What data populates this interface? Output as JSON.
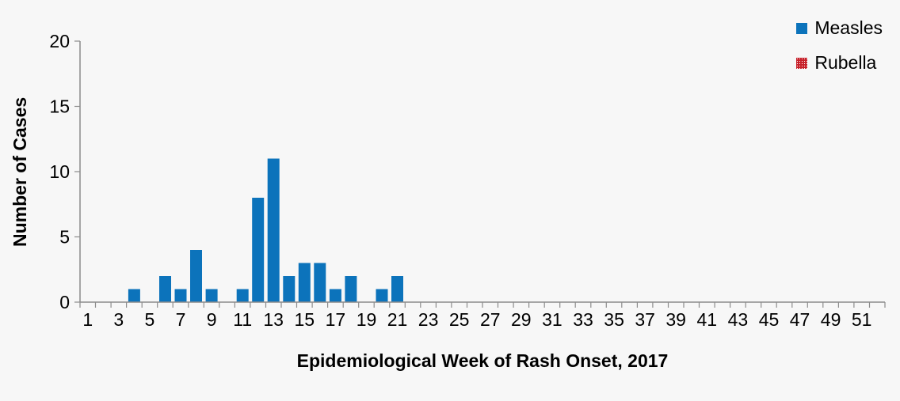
{
  "chart_data": {
    "type": "bar",
    "title": "",
    "xlabel": "Epidemiological Week of Rash Onset, 2017",
    "ylabel": "Number of Cases",
    "categories": [
      1,
      2,
      3,
      4,
      5,
      6,
      7,
      8,
      9,
      10,
      11,
      12,
      13,
      14,
      15,
      16,
      17,
      18,
      19,
      20,
      21,
      22,
      23,
      24,
      25,
      26,
      27,
      28,
      29,
      30,
      31,
      32,
      33,
      34,
      35,
      36,
      37,
      38,
      39,
      40,
      41,
      42,
      43,
      44,
      45,
      46,
      47,
      48,
      49,
      50,
      51,
      52
    ],
    "x_tick_labels_shown": [
      1,
      3,
      5,
      7,
      9,
      11,
      13,
      15,
      17,
      19,
      21,
      23,
      25,
      27,
      29,
      31,
      33,
      35,
      37,
      39,
      41,
      43,
      45,
      47,
      49,
      51
    ],
    "ylim": [
      0,
      20
    ],
    "yticks": [
      0,
      5,
      10,
      15,
      20
    ],
    "grid": false,
    "legend_position": "top-right",
    "series": [
      {
        "name": "Measles",
        "color": "#0C73BB",
        "pattern": "solid",
        "values": [
          0,
          0,
          0,
          1,
          0,
          2,
          1,
          4,
          1,
          0,
          1,
          8,
          11,
          2,
          3,
          3,
          1,
          2,
          0,
          1,
          2,
          0,
          0,
          0,
          0,
          0,
          0,
          0,
          0,
          0,
          0,
          0,
          0,
          0,
          0,
          0,
          0,
          0,
          0,
          0,
          0,
          0,
          0,
          0,
          0,
          0,
          0,
          0,
          0,
          0,
          0,
          0
        ]
      },
      {
        "name": "Rubella",
        "color": "#C7212A",
        "pattern": "dotted",
        "values": [
          0,
          0,
          0,
          0,
          0,
          0,
          0,
          0,
          0,
          0,
          0,
          0,
          0,
          0,
          0,
          0,
          0,
          0,
          0,
          0,
          0,
          0,
          0,
          0,
          0,
          0,
          0,
          0,
          0,
          0,
          0,
          0,
          0,
          0,
          0,
          0,
          0,
          0,
          0,
          0,
          0,
          0,
          0,
          0,
          0,
          0,
          0,
          0,
          0,
          0,
          0,
          0
        ]
      }
    ]
  },
  "legend": {
    "items": [
      {
        "label": "Measles",
        "color": "#0C73BB",
        "pattern": "solid"
      },
      {
        "label": "Rubella",
        "color": "#C7212A",
        "pattern": "dotted"
      }
    ]
  },
  "colors": {
    "background": "#F7F7F7",
    "axis": "#8C8C8C",
    "text": "#000000",
    "measles_blue": "#0C73BB",
    "rubella_red": "#C7212A"
  }
}
